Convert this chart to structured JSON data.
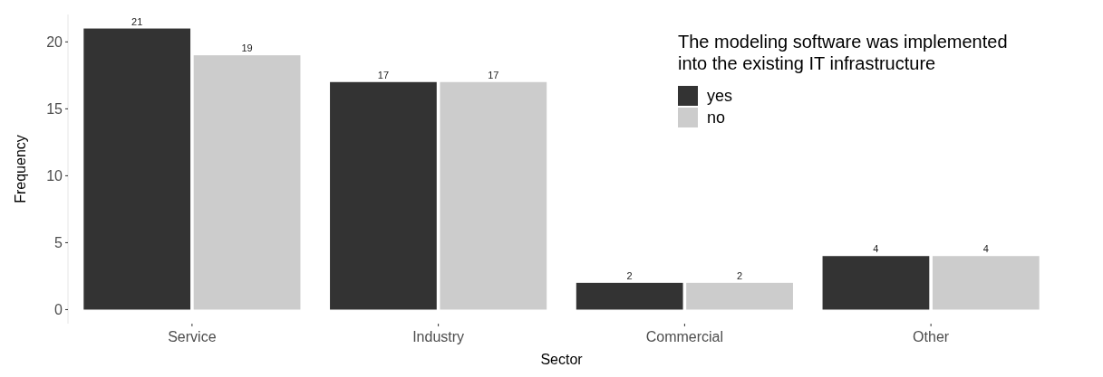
{
  "chart_data": {
    "type": "bar",
    "xlabel": "Sector",
    "ylabel": "Frequency",
    "legend_title": "The modeling software was implemented\ninto the existing IT infrastructure",
    "categories": [
      "Service",
      "Industry",
      "Commercial",
      "Other"
    ],
    "series": [
      {
        "name": "yes",
        "color": "#333333",
        "values": [
          21,
          17,
          2,
          4
        ]
      },
      {
        "name": "no",
        "color": "#cccccc",
        "values": [
          19,
          17,
          2,
          4
        ]
      }
    ],
    "ylim": [
      -1.05,
      22.05
    ],
    "yticks": [
      0,
      5,
      10,
      15,
      20
    ],
    "grid": false,
    "legend": "top right",
    "data_labels": true
  }
}
